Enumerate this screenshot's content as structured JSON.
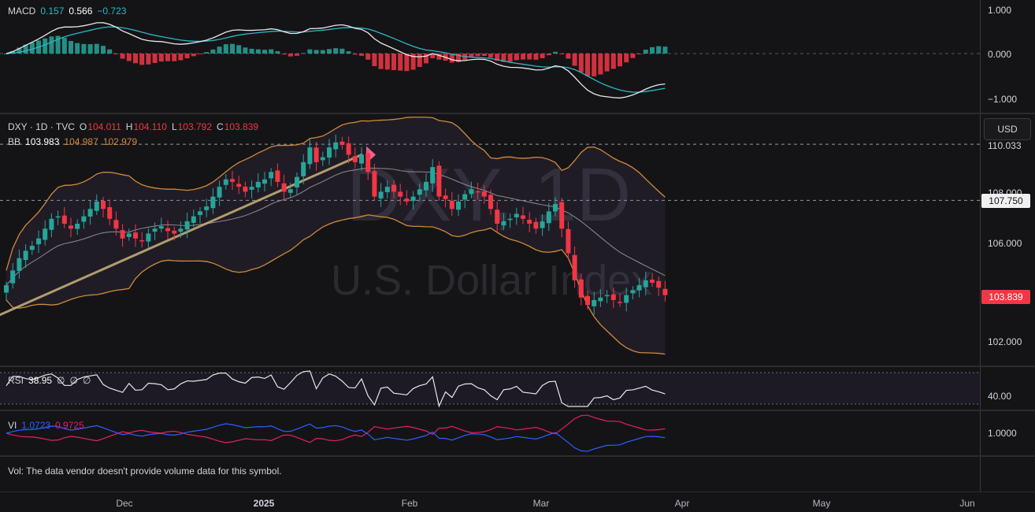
{
  "macd": {
    "label": "MACD",
    "v1": "0.157",
    "v2": "0.566",
    "v3": "−0.723",
    "ticks": [
      "1.000",
      "0.000",
      "−1.000"
    ]
  },
  "main": {
    "symbol": "DXY · 1D · TVC",
    "o_label": "O",
    "o": "104.011",
    "h_label": "H",
    "h": "104.110",
    "l_label": "L",
    "l": "103.792",
    "c_label": "C",
    "c": "103.839",
    "bb_label": "BB",
    "bb1": "103.983",
    "bb2": "104.987",
    "bb3": "102.979",
    "currency": "USD",
    "watermark_big": "DXY, 1D",
    "watermark_small": "U.S. Dollar Index",
    "ticks": [
      "110.033",
      "108.000",
      "106.000",
      "102.000"
    ],
    "level_tag": "107.750",
    "price_tag": "103.839"
  },
  "rsi": {
    "label": "RSI",
    "value": "38.95",
    "extra1": "∅",
    "extra2": "∅",
    "extra3": "∅",
    "tick": "40.00"
  },
  "vi": {
    "label": "VI",
    "v1": "1.0723",
    "v2": "0.9725",
    "tick": "1.0000"
  },
  "vol": {
    "message": "Vol: The data vendor doesn't provide volume data for this symbol."
  },
  "xaxis": {
    "labels": [
      "Dec",
      "2025",
      "Feb",
      "Mar",
      "Apr",
      "May",
      "Jun"
    ]
  },
  "colors": {
    "up": "#26a69a",
    "down": "#f23645",
    "bb": "#d0893a",
    "bb_basis": "#8c8c94",
    "macd": "#e8e8e8",
    "signal": "#2fb7c7",
    "vi_plus": "#2962ff",
    "vi_minus": "#e91e63",
    "trend": "#c8b47a"
  },
  "chart_data": [
    {
      "type": "candlestick",
      "title": "DXY · 1D · TVC",
      "x_labels": [
        "Dec",
        "2025",
        "Feb",
        "Mar",
        "Apr",
        "May",
        "Jun"
      ],
      "ylim": [
        101.0,
        111.0
      ],
      "closes": [
        104.3,
        104.9,
        105.4,
        105.7,
        105.9,
        106.2,
        106.6,
        107.0,
        107.1,
        106.8,
        106.6,
        106.8,
        107.1,
        107.4,
        107.7,
        107.4,
        107.0,
        106.6,
        106.2,
        106.4,
        106.2,
        106.1,
        106.4,
        106.6,
        106.7,
        106.5,
        106.4,
        106.6,
        106.9,
        107.1,
        107.3,
        107.5,
        107.9,
        108.3,
        108.6,
        108.5,
        108.3,
        108.1,
        108.3,
        108.5,
        108.6,
        108.9,
        108.5,
        108.1,
        108.2,
        108.7,
        109.3,
        109.9,
        109.3,
        109.5,
        109.9,
        110.1,
        110.0,
        109.6,
        109.3,
        109.6,
        108.9,
        107.9,
        108.1,
        108.3,
        108.1,
        107.9,
        107.7,
        107.9,
        108.2,
        108.5,
        109.1,
        107.9,
        107.8,
        107.4,
        107.7,
        108.0,
        108.2,
        108.1,
        107.9,
        107.4,
        106.8,
        106.9,
        107.0,
        107.2,
        107.0,
        106.8,
        106.6,
        106.9,
        107.3,
        107.6,
        106.6,
        105.6,
        104.5,
        103.8,
        103.5,
        103.7,
        103.8,
        103.9,
        103.7,
        103.6,
        103.9,
        104.1,
        104.3,
        104.5,
        104.4,
        104.2,
        103.9
      ],
      "series": [
        {
          "name": "BB",
          "values": [
            103.983,
            104.987,
            102.979
          ]
        }
      ]
    },
    {
      "type": "line",
      "title": "RSI",
      "series": [
        {
          "name": "RSI",
          "values": [
            38.95
          ]
        }
      ]
    },
    {
      "type": "line",
      "title": "VI",
      "series": [
        {
          "name": "VI+",
          "values": [
            1.0723
          ]
        },
        {
          "name": "VI−",
          "values": [
            0.9725
          ]
        }
      ]
    },
    {
      "type": "bar",
      "title": "MACD",
      "ylim": [
        -1.2,
        1.2
      ],
      "series": [
        {
          "name": "MACD",
          "values": [
            0.157,
            0.566,
            -0.723
          ]
        }
      ]
    }
  ]
}
